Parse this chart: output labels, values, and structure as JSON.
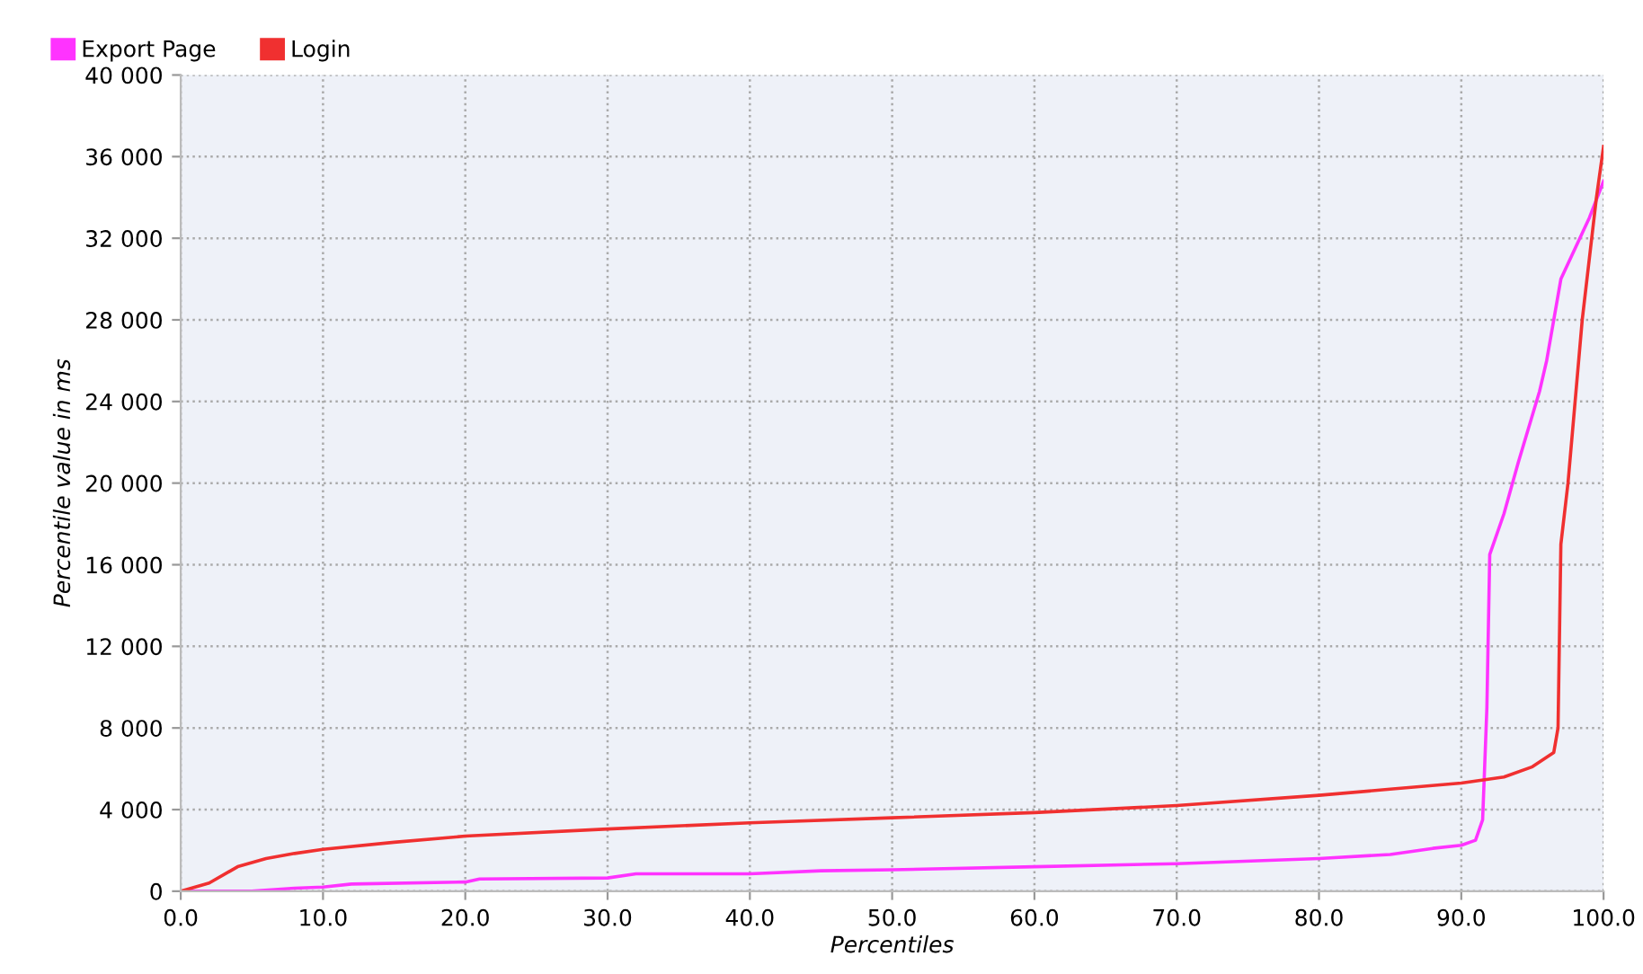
{
  "chart_data": {
    "type": "line",
    "xlabel": "Percentiles",
    "ylabel": "Percentile value in ms",
    "series": [
      {
        "name": "Export Page",
        "color": "#ff33ff",
        "x": [
          0,
          5,
          8,
          10,
          12,
          20,
          21,
          30,
          32,
          40,
          45,
          50,
          60,
          70,
          80,
          85,
          88,
          90,
          91,
          91.5,
          91.8,
          92,
          93,
          94,
          95.5,
          96,
          97,
          99,
          100
        ],
        "values": [
          0,
          0,
          150,
          200,
          350,
          450,
          600,
          650,
          850,
          850,
          1000,
          1050,
          1200,
          1350,
          1600,
          1800,
          2100,
          2250,
          2500,
          3500,
          9000,
          16500,
          18500,
          21000,
          24500,
          26000,
          30000,
          33000,
          34800
        ]
      },
      {
        "name": "Login",
        "color": "#f03030",
        "x": [
          0,
          2,
          4,
          6,
          8,
          10,
          15,
          20,
          30,
          40,
          50,
          60,
          70,
          80,
          85,
          90,
          93,
          95,
          96.5,
          96.8,
          97,
          97.5,
          98.5,
          99.5,
          100
        ],
        "values": [
          0,
          400,
          1200,
          1600,
          1850,
          2050,
          2400,
          2700,
          3050,
          3350,
          3600,
          3850,
          4200,
          4700,
          5000,
          5300,
          5600,
          6100,
          6800,
          8000,
          17000,
          20000,
          28000,
          34000,
          36500
        ]
      }
    ],
    "xlim": [
      0,
      100
    ],
    "xticks": [
      {
        "value": 0,
        "label": "0.0"
      },
      {
        "value": 10,
        "label": "10.0"
      },
      {
        "value": 20,
        "label": "20.0"
      },
      {
        "value": 30,
        "label": "30.0"
      },
      {
        "value": 40,
        "label": "40.0"
      },
      {
        "value": 50,
        "label": "50.0"
      },
      {
        "value": 60,
        "label": "60.0"
      },
      {
        "value": 70,
        "label": "70.0"
      },
      {
        "value": 80,
        "label": "80.0"
      },
      {
        "value": 90,
        "label": "90.0"
      },
      {
        "value": 100,
        "label": "100.0"
      }
    ],
    "ylim": [
      0,
      40000
    ],
    "yticks": [
      0,
      {
        "value": 4000,
        "label": "4 000"
      },
      {
        "value": 8000,
        "label": "8 000"
      },
      {
        "value": 12000,
        "label": "12 000"
      },
      {
        "value": 16000,
        "label": "16 000"
      },
      {
        "value": 20000,
        "label": "20 000"
      },
      {
        "value": 24000,
        "label": "24 000"
      },
      {
        "value": 28000,
        "label": "28 000"
      },
      {
        "value": 32000,
        "label": "32 000"
      },
      {
        "value": 36000,
        "label": "36 000"
      },
      {
        "value": 40000,
        "label": "40 000"
      }
    ],
    "grid": true,
    "legend": "top left",
    "line_style": "solid",
    "marker": "none"
  }
}
